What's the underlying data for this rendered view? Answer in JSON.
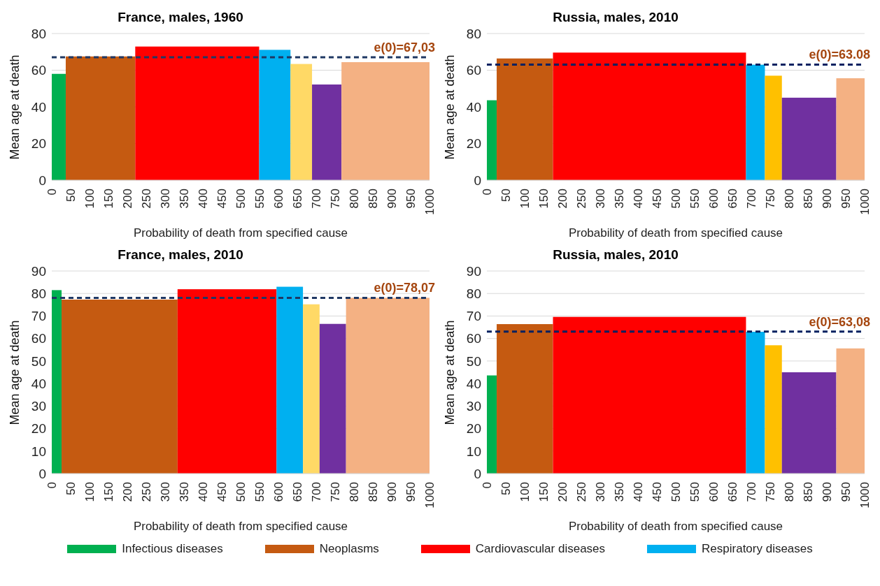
{
  "chart_data": [
    {
      "type": "histogram",
      "title": "France, males, 1960",
      "xlabel": "Probability of death from specified cause",
      "ylabel": "Mean  age  at  death",
      "bins": [
        0,
        37,
        221,
        549,
        632,
        689,
        767,
        1000
      ],
      "series": [
        {
          "name": "Infectious diseases",
          "color": "#00b050",
          "values": [
            58,
            null,
            null,
            null,
            null,
            null,
            null
          ]
        },
        {
          "name": "Neoplasms",
          "color": "#c55a11",
          "values": [
            null,
            67.5,
            null,
            null,
            null,
            null,
            null
          ]
        },
        {
          "name": "Cardiovascular diseases",
          "color": "#ff0000",
          "values": [
            null,
            null,
            72.9,
            null,
            null,
            null,
            null
          ]
        },
        {
          "name": "Respiratory diseases",
          "color": "#00b0f0",
          "values": [
            null,
            null,
            null,
            71.1,
            null,
            null,
            null
          ]
        },
        {
          "color": "#ffd966",
          "values": [
            null,
            null,
            null,
            null,
            63.4,
            null,
            null
          ]
        },
        {
          "color": "#7030a0",
          "values": [
            null,
            null,
            null,
            null,
            null,
            52.2,
            null
          ]
        },
        {
          "color": "#f4b183",
          "values": [
            null,
            null,
            null,
            null,
            null,
            null,
            64.4
          ]
        }
      ],
      "xlim": [
        0,
        1000
      ],
      "xticks": [
        0,
        50,
        100,
        150,
        200,
        250,
        300,
        350,
        400,
        450,
        500,
        550,
        600,
        650,
        700,
        750,
        800,
        850,
        900,
        950,
        1000
      ],
      "ylim": [
        0,
        80
      ],
      "yticks": [
        0,
        20,
        40,
        60,
        80
      ],
      "grid": "y",
      "legend": "bottom",
      "ref_lines": [
        {
          "axis": "y",
          "value": 67.03,
          "label": "e(0)=67,03",
          "color": "#1f3864",
          "line_style": "dashed"
        }
      ]
    },
    {
      "type": "histogram",
      "title": "Russia, males, 2010",
      "xlabel": "Probability of death from specified cause",
      "ylabel": "Mean age at death",
      "bins": [
        0,
        26,
        175,
        686,
        736,
        781,
        925,
        1000
      ],
      "series": [
        {
          "color": "#00b050",
          "values": [
            43.6,
            null,
            null,
            null,
            null,
            null,
            null
          ]
        },
        {
          "color": "#c55a11",
          "values": [
            null,
            66.4,
            null,
            null,
            null,
            null,
            null
          ]
        },
        {
          "color": "#ff0000",
          "values": [
            null,
            null,
            69.6,
            null,
            null,
            null,
            null
          ]
        },
        {
          "color": "#00b0f0",
          "values": [
            null,
            null,
            null,
            63,
            null,
            null,
            null
          ]
        },
        {
          "color": "#ffc000",
          "values": [
            null,
            null,
            null,
            null,
            57,
            null,
            null
          ]
        },
        {
          "color": "#7030a0",
          "values": [
            null,
            null,
            null,
            null,
            null,
            45,
            null
          ]
        },
        {
          "color": "#f4b183",
          "values": [
            null,
            null,
            null,
            null,
            null,
            null,
            55.6
          ]
        }
      ],
      "xlim": [
        0,
        1000
      ],
      "xticks": [
        0,
        50,
        100,
        150,
        200,
        250,
        300,
        350,
        400,
        450,
        500,
        550,
        600,
        650,
        700,
        750,
        800,
        850,
        900,
        950,
        1000
      ],
      "ylim": [
        0,
        80
      ],
      "yticks": [
        0,
        20,
        40,
        60,
        80
      ],
      "grid": "y",
      "ref_lines": [
        {
          "axis": "y",
          "value": 63.08,
          "label": "e(0)=63.08",
          "color": "#002060",
          "line_style": "dashed"
        }
      ]
    },
    {
      "type": "histogram",
      "title": "France, males, 2010",
      "xlabel": "Probability of death from specified cause",
      "ylabel": "Mean  age  at  death",
      "bins": [
        0,
        26,
        333,
        595,
        665,
        709,
        779,
        1000
      ],
      "series": [
        {
          "color": "#00b050",
          "values": [
            81.5,
            null,
            null,
            null,
            null,
            null,
            null
          ]
        },
        {
          "color": "#c55a11",
          "values": [
            null,
            77.3,
            null,
            null,
            null,
            null,
            null
          ]
        },
        {
          "color": "#ff0000",
          "values": [
            null,
            null,
            81.9,
            null,
            null,
            null,
            null
          ]
        },
        {
          "color": "#00b0f0",
          "values": [
            null,
            null,
            null,
            83,
            null,
            null,
            null
          ]
        },
        {
          "color": "#ffd966",
          "values": [
            null,
            null,
            null,
            null,
            75.2,
            null,
            null
          ]
        },
        {
          "color": "#7030a0",
          "values": [
            null,
            null,
            null,
            null,
            null,
            66.5,
            null
          ]
        },
        {
          "color": "#f4b183",
          "values": [
            null,
            null,
            null,
            null,
            null,
            null,
            78.1
          ]
        }
      ],
      "xlim": [
        0,
        1000
      ],
      "xticks": [
        0,
        50,
        100,
        150,
        200,
        250,
        300,
        350,
        400,
        450,
        500,
        550,
        600,
        650,
        700,
        750,
        800,
        850,
        900,
        950,
        1000
      ],
      "ylim": [
        0,
        90
      ],
      "yticks": [
        0,
        10,
        20,
        30,
        40,
        50,
        60,
        70,
        80,
        90
      ],
      "grid": "y",
      "ref_lines": [
        {
          "axis": "y",
          "value": 78.07,
          "label": "e(0)=78,07",
          "color": "#1f3864",
          "line_style": "dashed"
        }
      ]
    },
    {
      "type": "histogram",
      "title": "Russia, males, 2010",
      "xlabel": "Probability of death from specified cause",
      "ylabel": "Mean  age  at  death",
      "bins": [
        0,
        26,
        175,
        686,
        736,
        781,
        925,
        1000
      ],
      "series": [
        {
          "color": "#00b050",
          "values": [
            43.6,
            null,
            null,
            null,
            null,
            null,
            null
          ]
        },
        {
          "color": "#c55a11",
          "values": [
            null,
            66.4,
            null,
            null,
            null,
            null,
            null
          ]
        },
        {
          "color": "#ff0000",
          "values": [
            null,
            null,
            69.6,
            null,
            null,
            null,
            null
          ]
        },
        {
          "color": "#00b0f0",
          "values": [
            null,
            null,
            null,
            63,
            null,
            null,
            null
          ]
        },
        {
          "color": "#ffc000",
          "values": [
            null,
            null,
            null,
            null,
            57,
            null,
            null
          ]
        },
        {
          "color": "#7030a0",
          "values": [
            null,
            null,
            null,
            null,
            null,
            45,
            null
          ]
        },
        {
          "color": "#f4b183",
          "values": [
            null,
            null,
            null,
            null,
            null,
            null,
            55.6
          ]
        }
      ],
      "xlim": [
        0,
        1000
      ],
      "xticks": [
        0,
        50,
        100,
        150,
        200,
        250,
        300,
        350,
        400,
        450,
        500,
        550,
        600,
        650,
        700,
        750,
        800,
        850,
        900,
        950,
        1000
      ],
      "ylim": [
        0,
        90
      ],
      "yticks": [
        0,
        10,
        20,
        30,
        40,
        50,
        60,
        70,
        80,
        90
      ],
      "grid": "y",
      "ref_lines": [
        {
          "axis": "y",
          "value": 63.08,
          "label": "e(0)=63,08",
          "color": "#002060",
          "line_style": "dashed"
        }
      ]
    }
  ]
}
